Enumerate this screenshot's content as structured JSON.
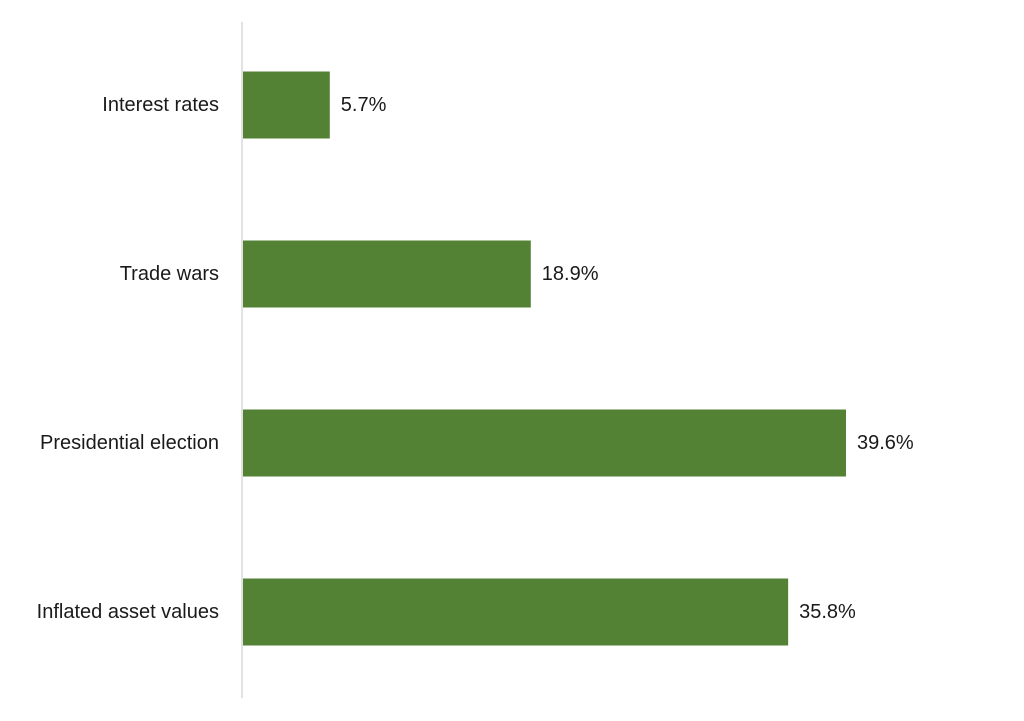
{
  "chart_data": {
    "type": "bar",
    "orientation": "horizontal",
    "title": "",
    "xlabel": "",
    "ylabel": "",
    "categories": [
      "Interest rates",
      "Trade wars",
      "Presidential election",
      "Inflated asset values"
    ],
    "values": [
      5.7,
      18.9,
      39.6,
      35.8
    ],
    "value_labels": [
      "5.7%",
      "18.9%",
      "39.6%",
      "35.8%"
    ],
    "xlim": [
      0,
      50
    ],
    "bar_color": "#548235",
    "axis_color": "#d9d9d9",
    "grid": false,
    "legend": "none"
  }
}
